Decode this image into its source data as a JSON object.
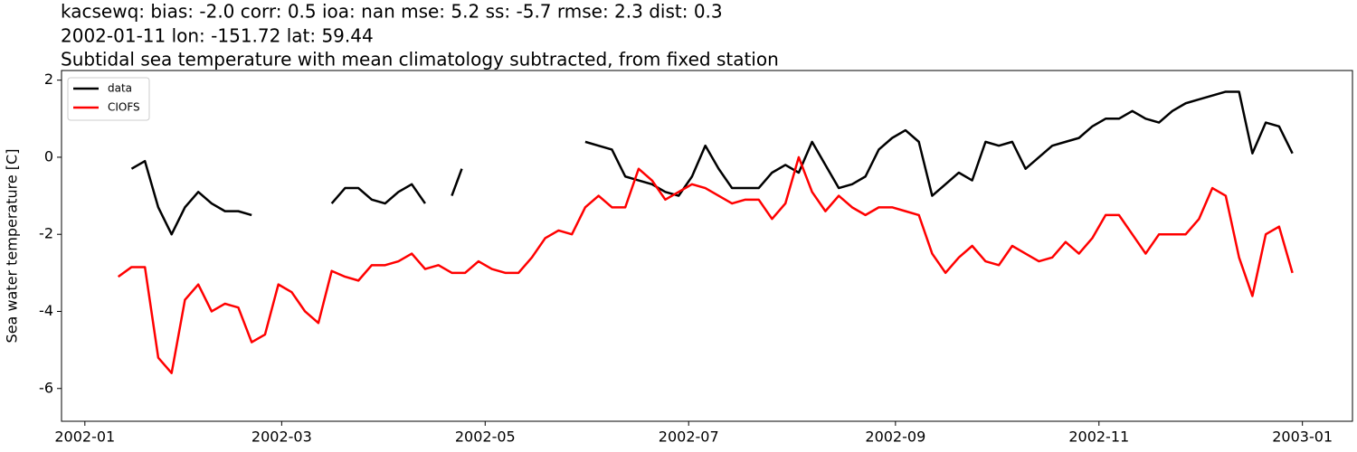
{
  "chart_data": {
    "type": "line",
    "title_lines": [
      "kacsewq: bias: -2.0  corr: 0.5  ioa: nan  mse: 5.2  ss: -5.7  rmse: 2.3  dist: 0.3",
      "2002-01-11 lon: -151.72 lat: 59.44",
      "Subtidal sea temperature with mean climatology subtracted, from fixed station"
    ],
    "y_label": "Sea water temperature [C]",
    "legend": "upper left",
    "x": [
      "2002-01-11",
      "2002-01-15",
      "2002-01-19",
      "2002-01-23",
      "2002-01-27",
      "2002-01-31",
      "2002-02-04",
      "2002-02-08",
      "2002-02-12",
      "2002-02-16",
      "2002-02-20",
      "2002-02-24",
      "2002-02-28",
      "2002-03-04",
      "2002-03-08",
      "2002-03-12",
      "2002-03-16",
      "2002-03-20",
      "2002-03-24",
      "2002-03-28",
      "2002-04-01",
      "2002-04-05",
      "2002-04-09",
      "2002-04-13",
      "2002-04-17",
      "2002-04-21",
      "2002-04-24",
      "2002-04-25",
      "2002-04-29",
      "2002-05-03",
      "2002-05-07",
      "2002-05-11",
      "2002-05-15",
      "2002-05-19",
      "2002-05-23",
      "2002-05-27",
      "2002-05-31",
      "2002-06-04",
      "2002-06-08",
      "2002-06-12",
      "2002-06-16",
      "2002-06-20",
      "2002-06-24",
      "2002-06-28",
      "2002-07-02",
      "2002-07-06",
      "2002-07-10",
      "2002-07-14",
      "2002-07-18",
      "2002-07-22",
      "2002-07-26",
      "2002-07-30",
      "2002-08-03",
      "2002-08-07",
      "2002-08-11",
      "2002-08-15",
      "2002-08-19",
      "2002-08-23",
      "2002-08-27",
      "2002-08-31",
      "2002-09-04",
      "2002-09-08",
      "2002-09-12",
      "2002-09-16",
      "2002-09-20",
      "2002-09-24",
      "2002-09-28",
      "2002-10-02",
      "2002-10-06",
      "2002-10-10",
      "2002-10-14",
      "2002-10-18",
      "2002-10-22",
      "2002-10-26",
      "2002-10-30",
      "2002-11-03",
      "2002-11-07",
      "2002-11-11",
      "2002-11-15",
      "2002-11-19",
      "2002-11-23",
      "2002-11-27",
      "2002-12-01",
      "2002-12-05",
      "2002-12-09",
      "2002-12-13",
      "2002-12-17",
      "2002-12-21",
      "2002-12-25",
      "2002-12-29"
    ],
    "series": [
      {
        "name": "data",
        "color": "#000000",
        "values": [
          null,
          -0.3,
          -0.1,
          -1.3,
          -2.0,
          -1.3,
          -0.9,
          -1.2,
          -1.4,
          -1.4,
          -1.5,
          null,
          null,
          null,
          null,
          null,
          -1.2,
          -0.8,
          -0.8,
          -1.1,
          -1.2,
          -0.9,
          -0.7,
          -1.2,
          null,
          -1.0,
          -0.3,
          null,
          null,
          null,
          null,
          null,
          null,
          null,
          null,
          null,
          0.4,
          0.3,
          0.2,
          -0.5,
          -0.6,
          -0.7,
          -0.9,
          -1.0,
          -0.5,
          0.3,
          -0.3,
          -0.8,
          -0.8,
          -0.8,
          -0.4,
          -0.2,
          -0.4,
          0.4,
          -0.2,
          -0.8,
          -0.7,
          -0.5,
          0.2,
          0.5,
          0.7,
          0.4,
          -1.0,
          -0.7,
          -0.4,
          -0.6,
          0.4,
          0.3,
          0.4,
          -0.3,
          0.0,
          0.3,
          0.4,
          0.5,
          0.8,
          1.0,
          1.0,
          1.2,
          1.0,
          0.9,
          1.2,
          1.4,
          1.5,
          1.6,
          1.7,
          1.7,
          0.1,
          0.9,
          0.8,
          0.1
        ]
      },
      {
        "name": "CIOFS",
        "color": "#ff0000",
        "values": [
          -3.1,
          -2.85,
          -2.85,
          -5.2,
          -5.6,
          -3.7,
          -3.3,
          -4.0,
          -3.8,
          -3.9,
          -4.8,
          -4.6,
          -3.3,
          -3.5,
          -4.0,
          -4.3,
          -2.95,
          -3.1,
          -3.2,
          -2.8,
          -2.8,
          -2.7,
          -2.5,
          -2.9,
          -2.8,
          -3.0,
          -3.0,
          -3.0,
          -2.7,
          -2.9,
          -3.0,
          -3.0,
          -2.6,
          -2.1,
          -1.9,
          -2.0,
          -1.3,
          -1.0,
          -1.3,
          -1.3,
          -0.3,
          -0.6,
          -1.1,
          -0.9,
          -0.7,
          -0.8,
          -1.0,
          -1.2,
          -1.1,
          -1.1,
          -1.6,
          -1.2,
          0.0,
          -0.9,
          -1.4,
          -1.0,
          -1.3,
          -1.5,
          -1.3,
          -1.3,
          -1.4,
          -1.5,
          -2.5,
          -3.0,
          -2.6,
          -2.3,
          -2.7,
          -2.8,
          -2.3,
          -2.5,
          -2.7,
          -2.6,
          -2.2,
          -2.5,
          -2.1,
          -1.5,
          -1.5,
          -2.0,
          -2.5,
          -2.0,
          -2.0,
          -2.0,
          -1.6,
          -0.8,
          -1.0,
          -2.6,
          -3.6,
          -2.0,
          -1.8,
          -3.0
        ]
      }
    ],
    "xlim": [
      "2001-12-25",
      "2003-01-16"
    ],
    "xticks": [
      "2002-01",
      "2002-03",
      "2002-05",
      "2002-07",
      "2002-09",
      "2002-11",
      "2003-01"
    ],
    "ylim": [
      -6.85,
      2.25
    ],
    "yticks": [
      -6,
      -4,
      -2,
      0,
      2
    ]
  }
}
